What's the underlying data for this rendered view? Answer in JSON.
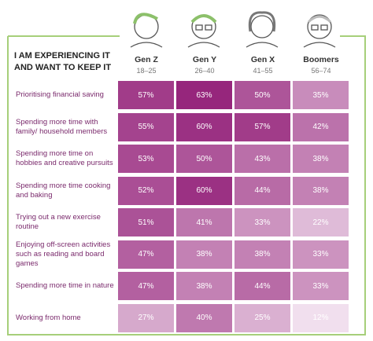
{
  "chart_data": {
    "type": "heatmap",
    "title": "I AM EXPERIENCING IT AND WANT TO KEEP IT",
    "categories": [
      "Prioritising financial saving",
      "Spending more time with family/ household members",
      "Spending more time on hobbies and creative pursuits",
      "Spending more time cooking and baking",
      "Trying out a new exercise routine",
      "Enjoying off-screen activities such as reading and board games",
      "Spending more time in nature",
      "Working from home"
    ],
    "series": [
      {
        "name": "Gen Z",
        "subtitle": "18–25",
        "values": [
          57,
          55,
          53,
          52,
          51,
          47,
          47,
          27
        ],
        "value_labels": [
          "57%",
          "55%",
          "53%",
          "52%",
          "51%",
          "47%",
          "47%",
          "27%"
        ]
      },
      {
        "name": "Gen Y",
        "subtitle": "26–40",
        "values": [
          63,
          60,
          50,
          60,
          41,
          38,
          38,
          40
        ],
        "value_labels": [
          "63%",
          "60%",
          "50%",
          "60%",
          "41%",
          "38%",
          "38%",
          "40%"
        ]
      },
      {
        "name": "Gen X",
        "subtitle": "41–55",
        "values": [
          50,
          57,
          43,
          44,
          33,
          38,
          44,
          25
        ],
        "value_labels": [
          "50%",
          "57%",
          "43%",
          "44%",
          "33%",
          "38%",
          "44%",
          "25%"
        ]
      },
      {
        "name": "Boomers",
        "subtitle": "56–74",
        "values": [
          35,
          42,
          38,
          38,
          22,
          33,
          33,
          12
        ],
        "value_labels": [
          "35%",
          "42%",
          "38%",
          "38%",
          "22%",
          "33%",
          "33%",
          "12%"
        ]
      }
    ],
    "color_scale": [
      "#f1dfee",
      "#96267c"
    ]
  }
}
